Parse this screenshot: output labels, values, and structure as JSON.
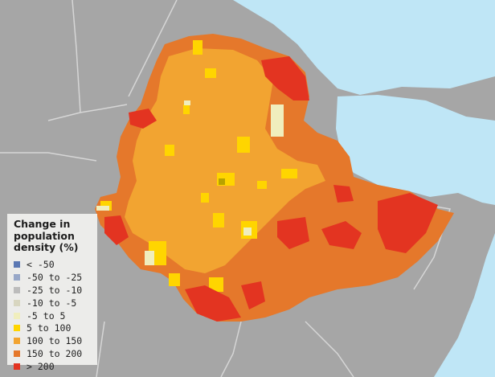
{
  "colors": {
    "background_land": "#a6a6a6",
    "sea": "#bfe6f6",
    "border_line": "#d6d6d6",
    "neg_50": "#5b78b3",
    "neg_50_25": "#98a8c8",
    "neg_25_10": "#bcbcbc",
    "neg_10_5": "#d8d6c0",
    "neg5_5": "#f0eebd",
    "c5_100": "#ffd500",
    "c100_150": "#f2a431",
    "c150_200": "#e5782b",
    "gt200": "#e33421"
  },
  "legend": {
    "title": "Change in population density (%)",
    "items": [
      {
        "label": "< -50",
        "color": "#5b78b3"
      },
      {
        "label": "-50 to -25",
        "color": "#98a8c8"
      },
      {
        "label": "-25 to -10",
        "color": "#bcbcbc"
      },
      {
        "label": "-10 to -5",
        "color": "#d8d6c0"
      },
      {
        "label": "-5 to 5",
        "color": "#f0eebd"
      },
      {
        "label": "5 to 100",
        "color": "#ffd500"
      },
      {
        "label": "100 to 150",
        "color": "#f2a431"
      },
      {
        "label": "150 to 200",
        "color": "#e5782b"
      },
      {
        "label": "> 200",
        "color": "#e33421"
      }
    ]
  }
}
